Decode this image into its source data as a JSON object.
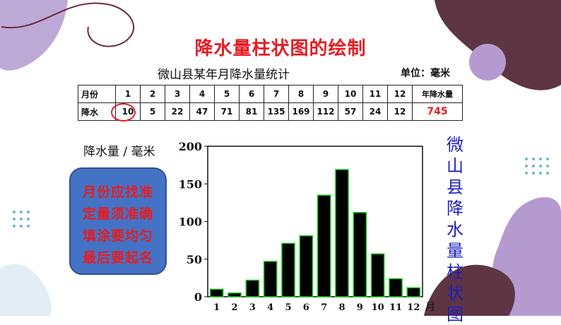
{
  "title": "降水量柱状图的绘制",
  "table": {
    "caption": "微山县某年月降水量统计",
    "unit": "单位：毫米",
    "row1_label": "月份",
    "row2_label": "降水",
    "months": [
      "1",
      "2",
      "3",
      "4",
      "5",
      "6",
      "7",
      "8",
      "9",
      "10",
      "11",
      "12"
    ],
    "values": [
      "10",
      "5",
      "22",
      "47",
      "71",
      "81",
      "135",
      "169",
      "112",
      "57",
      "24",
      "12"
    ],
    "total_label": "年降水量",
    "total_value": "745"
  },
  "tips": [
    "月份应找准",
    "定量须准确",
    "填涂要均匀",
    "最后要起名"
  ],
  "vertical_title": [
    "微",
    "山",
    "县",
    "降",
    "水",
    "量",
    "柱",
    "状",
    "图"
  ],
  "colors": {
    "title": "#e31e24",
    "bar_fill": "#000000",
    "bar_stroke": "#22cc22",
    "tips_bg": "#4472c4",
    "vertical_title": "#1e1ebe"
  },
  "chart_data": {
    "type": "bar",
    "categories": [
      "1",
      "2",
      "3",
      "4",
      "5",
      "6",
      "7",
      "8",
      "9",
      "10",
      "11",
      "12"
    ],
    "values": [
      10,
      5,
      22,
      47,
      71,
      81,
      135,
      169,
      112,
      57,
      24,
      12
    ],
    "title": "",
    "xlabel": "月",
    "ylabel": "降水量 / 毫米",
    "ylim": [
      0,
      200
    ],
    "yticks": [
      0,
      50,
      100,
      150,
      200
    ],
    "grid": false
  }
}
